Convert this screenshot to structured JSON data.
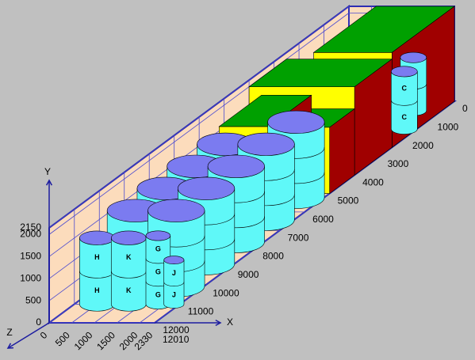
{
  "axes": {
    "x": {
      "label": "X",
      "ticks": [
        0,
        1000,
        2000,
        3000,
        4000,
        5000,
        6000,
        7000,
        8000,
        9000,
        10000,
        11000,
        12000,
        12010
      ]
    },
    "y": {
      "label": "Y",
      "ticks": [
        0,
        500,
        1000,
        1500,
        2000,
        2150
      ]
    },
    "z": {
      "label": "Z",
      "ticks": [
        0,
        500,
        1000,
        1500,
        2000,
        2330
      ]
    }
  },
  "items": [
    {
      "labels": [
        "C",
        "C"
      ]
    },
    {
      "labels": [
        "C",
        "C"
      ]
    },
    {
      "labels": [
        "H",
        "H"
      ]
    },
    {
      "labels": [
        "K",
        "K"
      ]
    },
    {
      "labels": [
        "G",
        "G",
        "G"
      ]
    },
    {
      "labels": [
        "J",
        "J"
      ]
    }
  ]
}
